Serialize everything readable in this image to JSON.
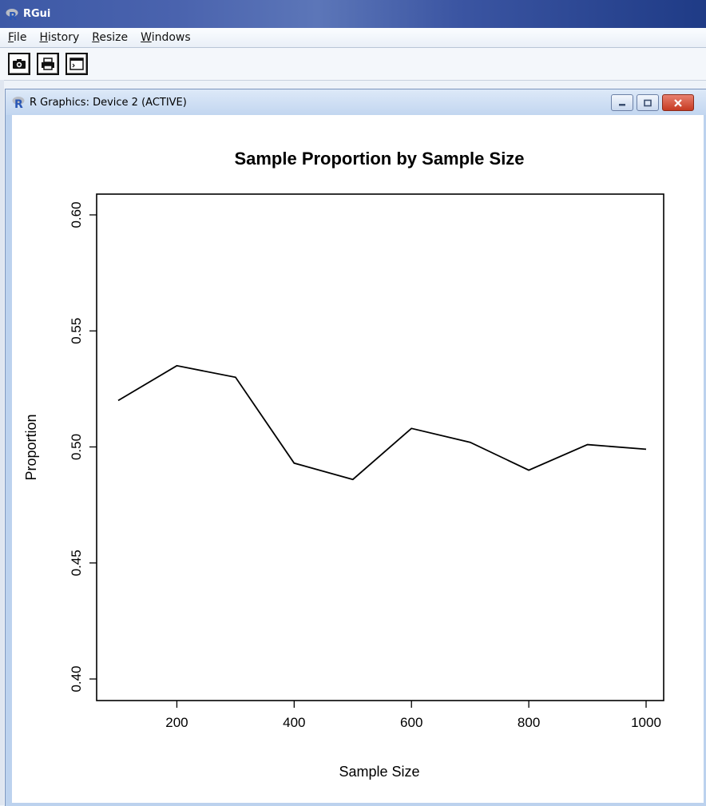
{
  "app": {
    "title": "RGui",
    "menu": [
      {
        "label": "File",
        "mnemonic": "F",
        "rest": "ile"
      },
      {
        "label": "History",
        "mnemonic": "H",
        "rest": "istory"
      },
      {
        "label": "Resize",
        "mnemonic": "R",
        "rest": "esize"
      },
      {
        "label": "Windows",
        "mnemonic": "W",
        "rest": "indows"
      }
    ],
    "toolbar": [
      {
        "icon": "camera-icon"
      },
      {
        "icon": "printer-icon"
      },
      {
        "icon": "console-window-icon"
      }
    ]
  },
  "graphics_window": {
    "title": "R Graphics: Device 2 (ACTIVE)",
    "controls": [
      "minimize-icon",
      "maximize-icon",
      "close-icon"
    ]
  },
  "colors": {
    "title_gradient_start": "#3d59a6",
    "title_gradient_end": "#1f3b86",
    "close_button": "#c63a22",
    "plot_line": "#000000"
  },
  "chart_data": {
    "type": "line",
    "title": "Sample Proportion by Sample Size",
    "xlabel": "Sample Size",
    "ylabel": "Proportion",
    "x": [
      100,
      200,
      300,
      400,
      500,
      600,
      700,
      800,
      900,
      1000
    ],
    "series": [
      {
        "values": [
          0.52,
          0.535,
          0.53,
          0.493,
          0.486,
          0.508,
          0.502,
          0.49,
          0.501,
          0.499
        ]
      }
    ],
    "xlim": [
      100,
      1000
    ],
    "ylim": [
      0.4,
      0.6
    ],
    "xticks": [
      200,
      400,
      600,
      800,
      1000
    ],
    "xtick_labels": [
      "200",
      "400",
      "600",
      "800",
      "1000"
    ],
    "yticks": [
      0.4,
      0.45,
      0.5,
      0.55,
      0.6
    ],
    "ytick_labels": [
      "0.40",
      "0.45",
      "0.50",
      "0.55",
      "0.60"
    ],
    "grid": false,
    "legend": "none"
  }
}
